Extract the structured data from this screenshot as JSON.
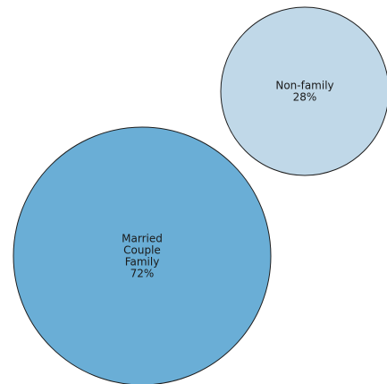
{
  "chart_data": {
    "type": "bubble",
    "series": [
      {
        "name": "Married Couple Family",
        "label_lines": [
          "Married",
          "Couple",
          "Family"
        ],
        "value": 72,
        "value_label": "72%",
        "color": "#6aaed6"
      },
      {
        "name": "Non-family",
        "label_lines": [
          "Non-family"
        ],
        "value": 28,
        "value_label": "28%",
        "color": "#c0d8e8"
      }
    ],
    "stroke_color": "#1f1f1f"
  }
}
